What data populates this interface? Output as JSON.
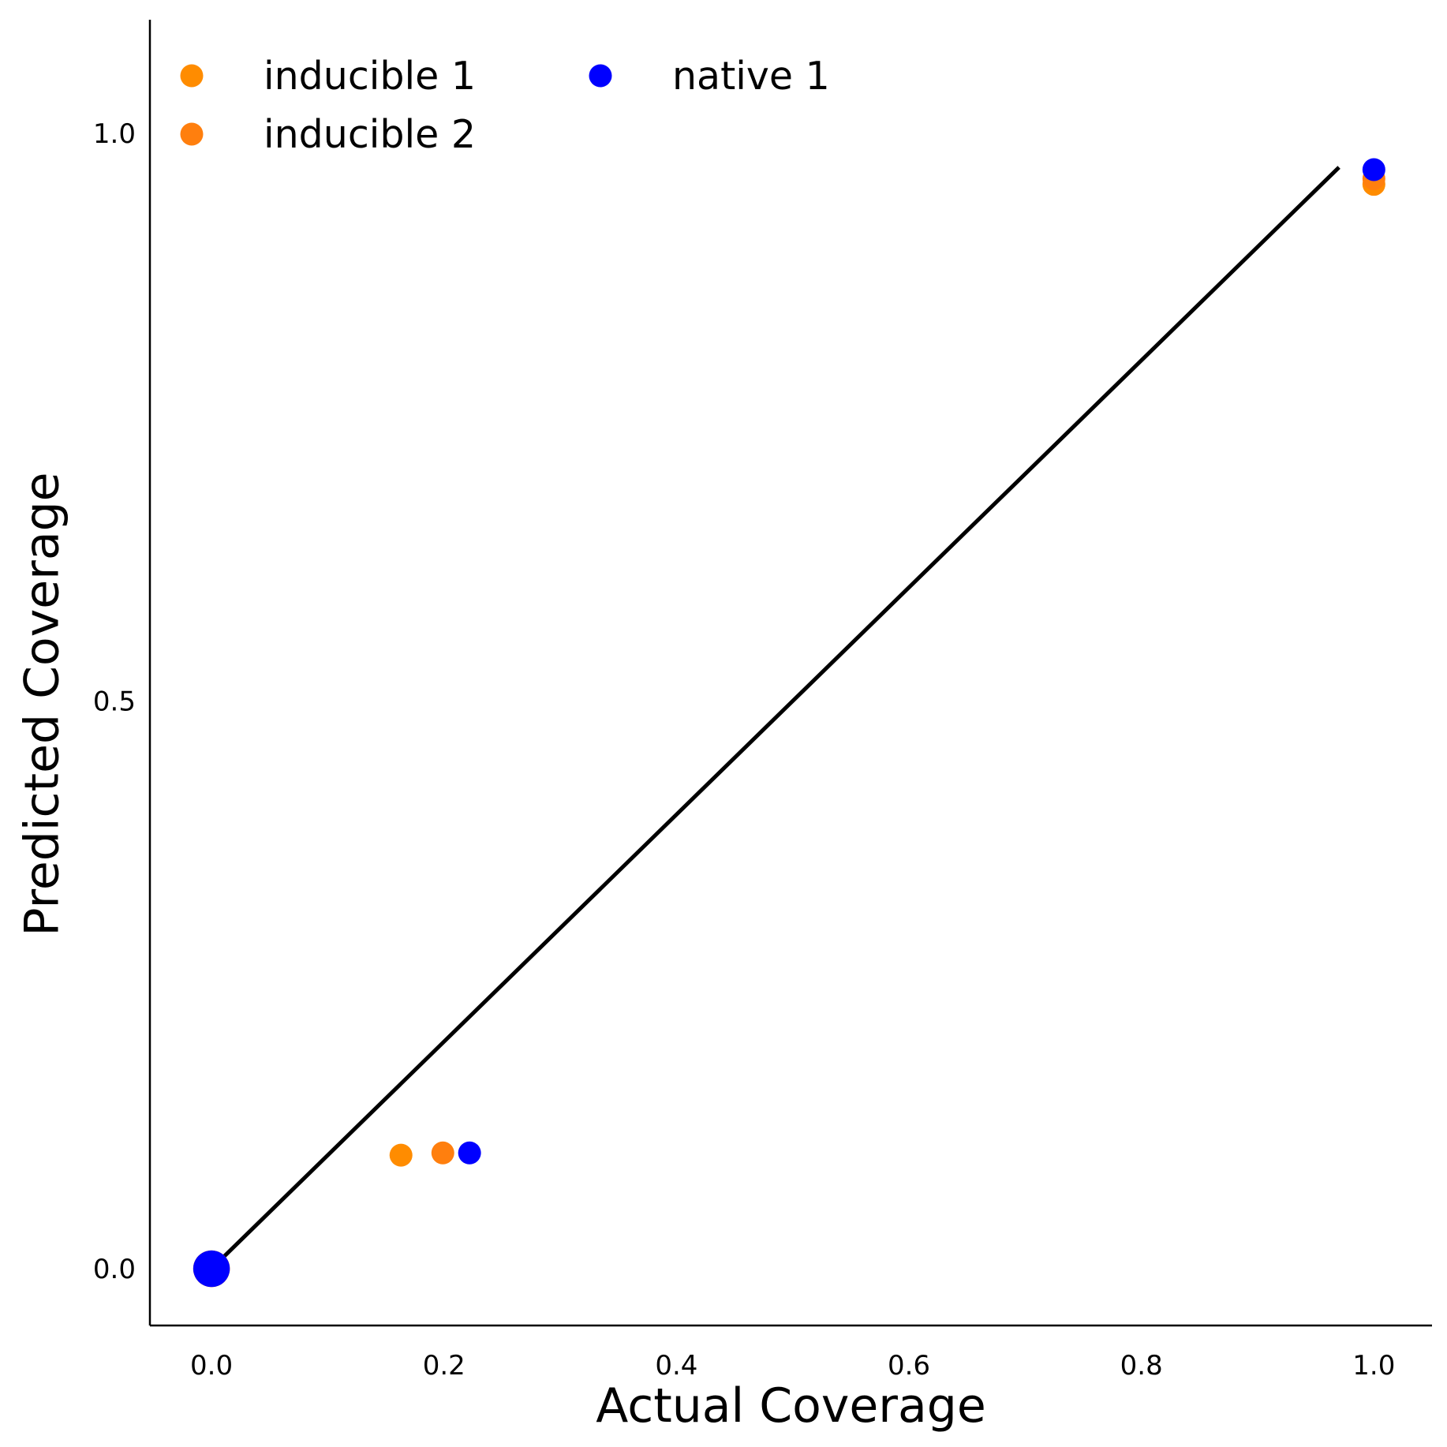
{
  "chart_data": {
    "type": "scatter",
    "title": "",
    "xlabel": "Actual Coverage",
    "ylabel": "Predicted Coverage",
    "xlim": [
      -0.053,
      1.05
    ],
    "ylim": [
      -0.05,
      1.1
    ],
    "x_ticks": [
      0.0,
      0.2,
      0.4,
      0.6,
      0.8,
      1.0
    ],
    "x_tick_labels": [
      "0.0",
      "0.2",
      "0.4",
      "0.6",
      "0.8",
      "1.0"
    ],
    "y_ticks": [
      0.0,
      0.5,
      1.0
    ],
    "y_tick_labels": [
      "0.0",
      "0.5",
      "1.0"
    ],
    "grid": false,
    "legend_position": "top-left",
    "reference_line": {
      "x": [
        0.0,
        0.97
      ],
      "y": [
        0.0,
        0.97
      ],
      "color": "#000000"
    },
    "series": [
      {
        "name": "inducible 1",
        "color": "#ff8c00",
        "points": [
          {
            "x": 0.0,
            "y": 0.0,
            "size": 1.6
          },
          {
            "x": 0.163,
            "y": 0.1,
            "size": 1
          },
          {
            "x": 1.0,
            "y": 0.955,
            "size": 1
          }
        ]
      },
      {
        "name": "inducible 2",
        "color": "#ff7f0e",
        "points": [
          {
            "x": 0.0,
            "y": 0.0,
            "size": 1.6
          },
          {
            "x": 0.199,
            "y": 0.102,
            "size": 1
          },
          {
            "x": 1.0,
            "y": 0.96,
            "size": 1
          }
        ]
      },
      {
        "name": "native 1",
        "color": "#0000ff",
        "points": [
          {
            "x": 0.0,
            "y": 0.0,
            "size": 1.6
          },
          {
            "x": 0.222,
            "y": 0.102,
            "size": 1
          },
          {
            "x": 1.0,
            "y": 0.968,
            "size": 1
          }
        ]
      }
    ]
  }
}
